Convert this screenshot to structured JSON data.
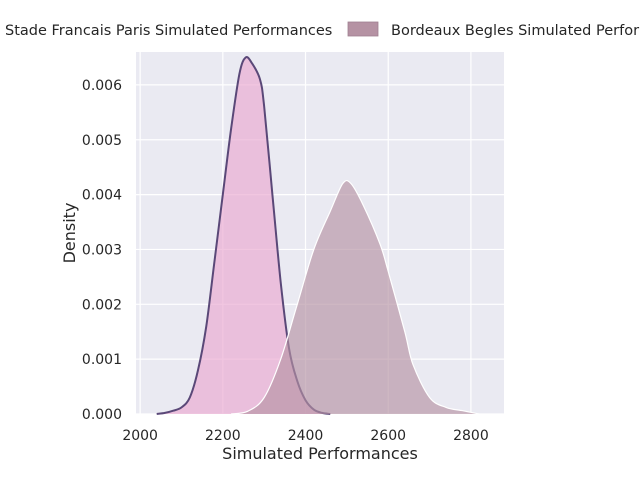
{
  "chart_data": {
    "type": "area",
    "xlabel": "Simulated Performances",
    "ylabel": "Density",
    "xlim": [
      1990,
      2880
    ],
    "ylim": [
      0,
      0.0066
    ],
    "xticks": [
      2000,
      2200,
      2400,
      2600,
      2800
    ],
    "yticks": [
      0.0,
      0.001,
      0.002,
      0.003,
      0.004,
      0.005,
      0.006
    ],
    "ytick_labels": [
      "0.000",
      "0.001",
      "0.002",
      "0.003",
      "0.004",
      "0.005",
      "0.006"
    ],
    "grid": true,
    "legend_position": "top",
    "series": [
      {
        "name": "Stade Francais Paris Simulated Performances",
        "fill_color": "#e9a8cf",
        "line_color": "#5a4878",
        "points": [
          [
            2040,
            0.0
          ],
          [
            2060,
            2e-05
          ],
          [
            2080,
            6e-05
          ],
          [
            2100,
            0.00012
          ],
          [
            2120,
            0.0003
          ],
          [
            2140,
            0.0008
          ],
          [
            2160,
            0.0016
          ],
          [
            2180,
            0.0028
          ],
          [
            2200,
            0.004
          ],
          [
            2220,
            0.0052
          ],
          [
            2240,
            0.0062
          ],
          [
            2255,
            0.0065
          ],
          [
            2270,
            0.0064
          ],
          [
            2290,
            0.0061
          ],
          [
            2300,
            0.0056
          ],
          [
            2320,
            0.004
          ],
          [
            2340,
            0.0024
          ],
          [
            2360,
            0.0012
          ],
          [
            2380,
            0.0006
          ],
          [
            2400,
            0.00025
          ],
          [
            2420,
            8e-05
          ],
          [
            2440,
            2e-05
          ],
          [
            2460,
            0.0
          ]
        ]
      },
      {
        "name": "Bordeaux Begles Simulated Performances",
        "fill_color": "#b592a3",
        "line_color": "#ffffff",
        "points": [
          [
            2220,
            0.0
          ],
          [
            2260,
            5e-05
          ],
          [
            2300,
            0.0003
          ],
          [
            2340,
            0.001
          ],
          [
            2380,
            0.002
          ],
          [
            2420,
            0.003
          ],
          [
            2460,
            0.0037
          ],
          [
            2490,
            0.0042
          ],
          [
            2510,
            0.0042
          ],
          [
            2540,
            0.0038
          ],
          [
            2580,
            0.0031
          ],
          [
            2600,
            0.0026
          ],
          [
            2640,
            0.0015
          ],
          [
            2660,
            0.0009
          ],
          [
            2700,
            0.0003
          ],
          [
            2740,
            0.00012
          ],
          [
            2780,
            6e-05
          ],
          [
            2820,
            0.0
          ]
        ]
      }
    ]
  }
}
